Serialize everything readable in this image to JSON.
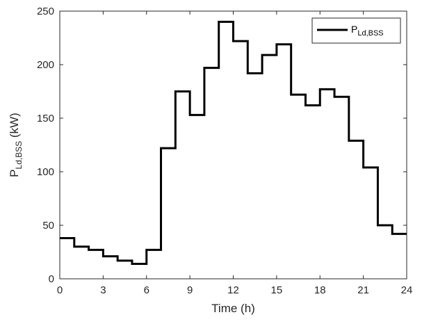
{
  "chart_data": {
    "type": "line",
    "step": true,
    "xlabel": "Time (h)",
    "ylabel_main": "P",
    "ylabel_sub": "Ld,BSS",
    "ylabel_unit": " (kW)",
    "xlim": [
      0,
      24
    ],
    "ylim": [
      0,
      250
    ],
    "xticks": [
      0,
      3,
      6,
      9,
      12,
      15,
      18,
      21,
      24
    ],
    "yticks": [
      0,
      50,
      100,
      150,
      200,
      250
    ],
    "grid": false,
    "legend_position": "top-right",
    "series": [
      {
        "name_main": "P",
        "name_sub": "Ld,BSS",
        "color": "#000000",
        "x": [
          0,
          1,
          2,
          3,
          4,
          5,
          6,
          7,
          8,
          9,
          10,
          11,
          12,
          13,
          14,
          15,
          16,
          17,
          18,
          19,
          20,
          21,
          22,
          23
        ],
        "values": [
          38,
          30,
          27,
          21,
          17,
          14,
          27,
          122,
          175,
          153,
          197,
          240,
          222,
          192,
          209,
          219,
          172,
          162,
          177,
          170,
          129,
          104,
          50,
          42
        ]
      }
    ]
  }
}
